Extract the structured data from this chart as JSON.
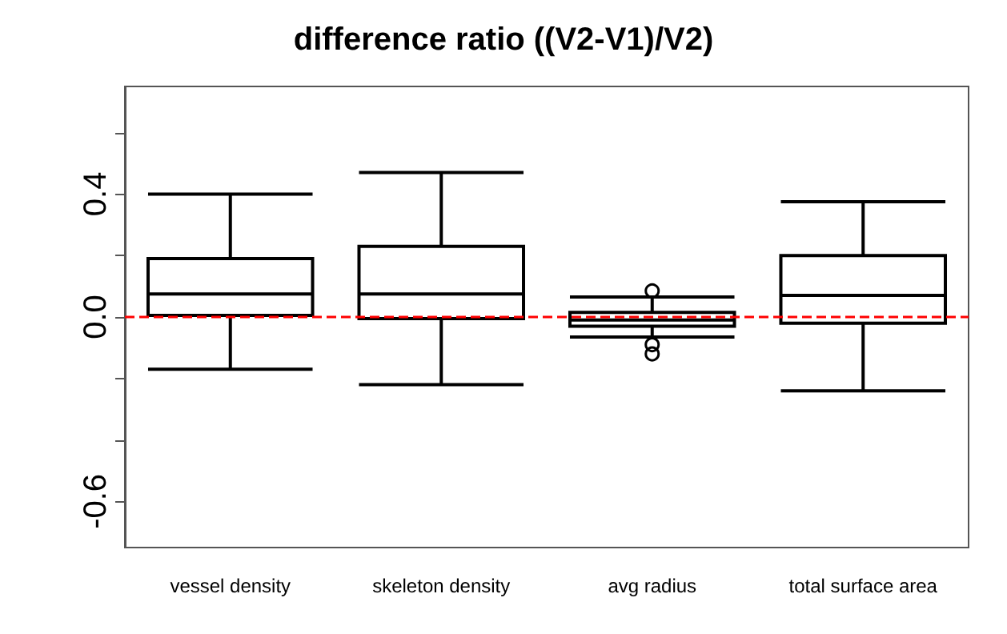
{
  "chart_data": {
    "type": "box",
    "title": "difference ratio ((V2-V1)/V2)",
    "categories": [
      "vessel density",
      "skeleton density",
      "avg radius",
      "total surface area"
    ],
    "boxes": [
      {
        "low": -0.17,
        "q1": 0.005,
        "median": 0.075,
        "q3": 0.19,
        "high": 0.4
      },
      {
        "low": -0.22,
        "q1": -0.005,
        "median": 0.075,
        "q3": 0.23,
        "high": 0.47
      },
      {
        "low": -0.065,
        "q1": -0.03,
        "median": -0.01,
        "q3": 0.015,
        "high": 0.065,
        "outliers": [
          0.085,
          -0.09,
          -0.12
        ]
      },
      {
        "low": -0.24,
        "q1": -0.02,
        "median": 0.07,
        "q3": 0.2,
        "high": 0.375
      }
    ],
    "color": "#000000",
    "ylim": [
      -0.75,
      0.75
    ],
    "yticks": [
      {
        "value": -0.6,
        "label": "-0.6"
      },
      {
        "value": -0.4,
        "label": null
      },
      {
        "value": -0.2,
        "label": null
      },
      {
        "value": 0,
        "label": "0.0"
      },
      {
        "value": 0.2,
        "label": null
      },
      {
        "value": 0.4,
        "label": "0.4"
      },
      {
        "value": 0.6,
        "label": null
      }
    ],
    "ref_lines": [
      {
        "axis": "y",
        "value": 0,
        "color": "#ff0000",
        "line_style": "dashed"
      }
    ],
    "grid": false
  }
}
